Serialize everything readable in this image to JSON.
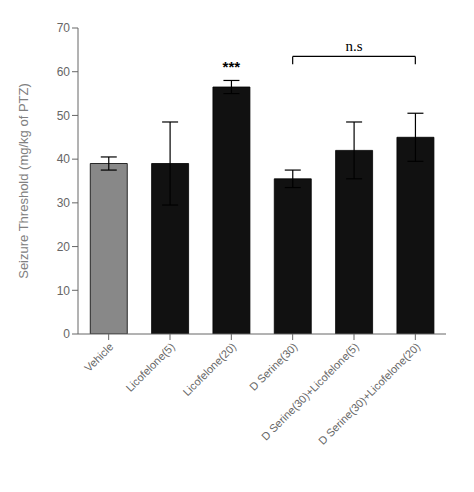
{
  "chart_data": {
    "type": "bar",
    "categories": [
      "Vehicle",
      "Licofelone(5)",
      "Licofelone(20)",
      "D Serine(30)",
      "D Serine(30)+Licofelone(5)",
      "D Serine(30)+Licofelone(20)"
    ],
    "values": [
      39.0,
      39.0,
      56.5,
      35.5,
      42.0,
      45.0
    ],
    "errors": [
      1.5,
      9.5,
      1.5,
      2.0,
      6.5,
      5.5
    ],
    "colors": [
      "#888888",
      "#111111",
      "#111111",
      "#111111",
      "#111111",
      "#111111"
    ],
    "ylabel": "Seizure Threshold (mg/kg of PTZ)",
    "ylim": [
      0,
      70
    ],
    "yticks": [
      0,
      10,
      20,
      30,
      40,
      50,
      60,
      70
    ],
    "grid": false,
    "annotations": [
      {
        "text": "***",
        "category": "Licofelone(20)",
        "y": 58.8
      },
      {
        "text": "n.s",
        "from": "D Serine(30)",
        "to": "D Serine(30)+Licofelone(20)",
        "y": 63.5,
        "tick_bottom": 61.7
      }
    ]
  }
}
